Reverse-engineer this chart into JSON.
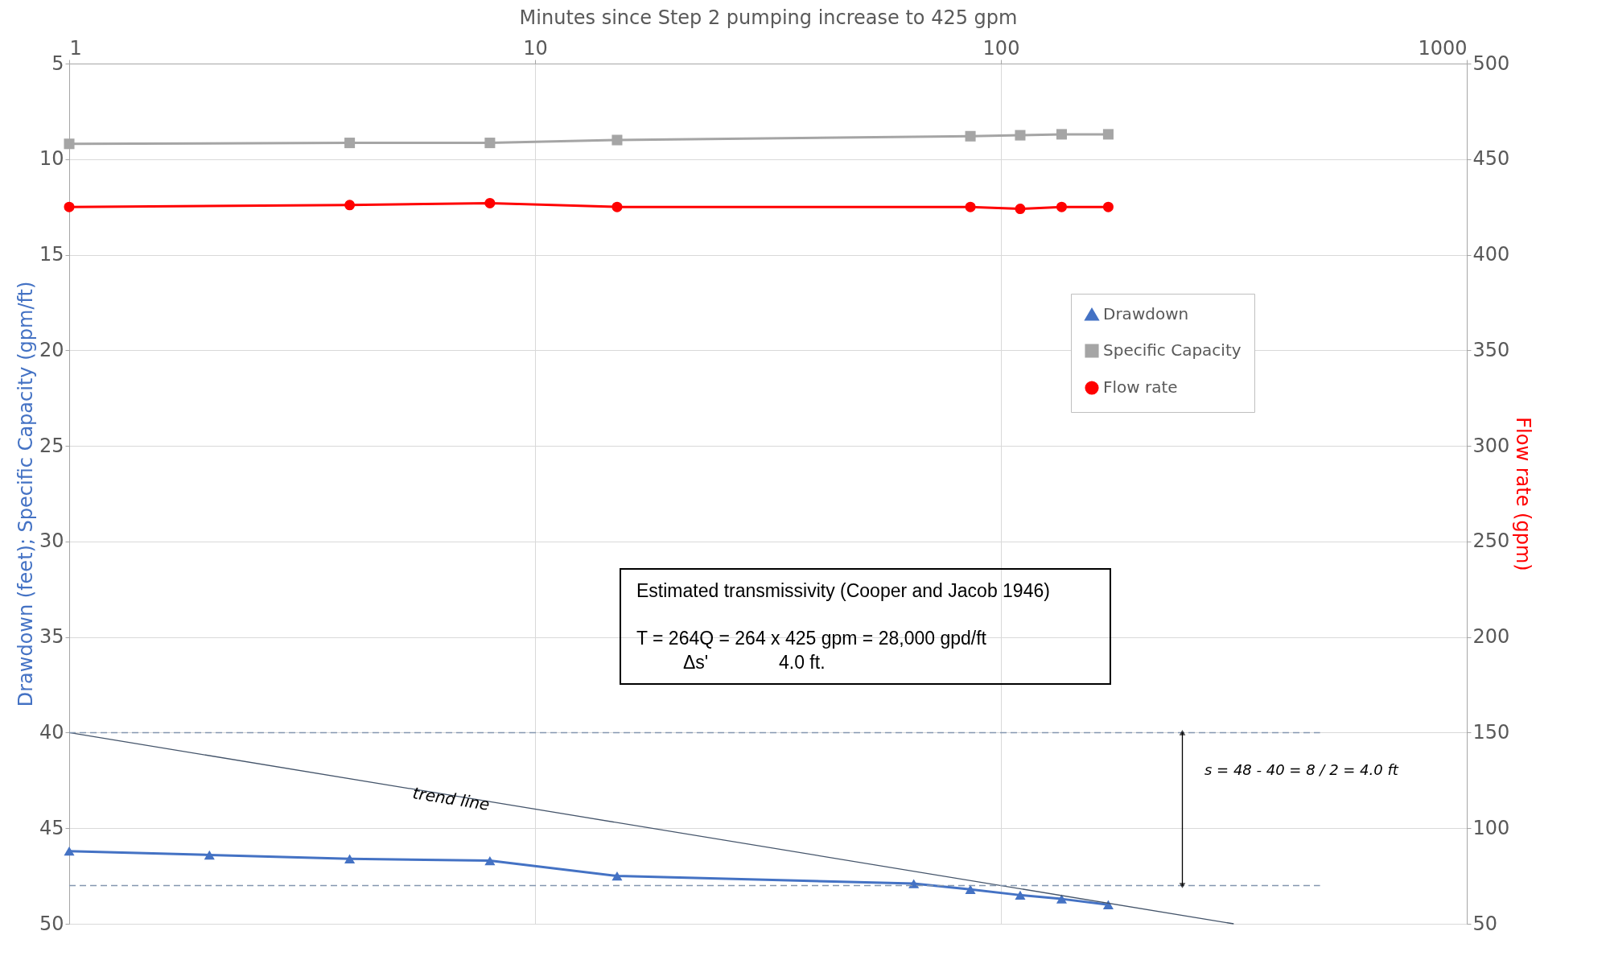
{
  "chart_data": {
    "type": "line",
    "xlabel": "Minutes since Step 2 pumping increase to 425 gpm",
    "ylabel": "Drawdown (feet); Specific Capacity (gpm/ft)",
    "y2label": "Flow rate (gpm)",
    "log": "x",
    "xlim": [
      1,
      1000
    ],
    "xticks": [
      1,
      10,
      100,
      1000
    ],
    "ylim": [
      50,
      5
    ],
    "yticks": [
      5,
      10,
      15,
      20,
      25,
      30,
      35,
      40,
      45,
      50
    ],
    "y2lim": [
      50,
      500
    ],
    "y2ticks": [
      50,
      100,
      150,
      200,
      250,
      300,
      350,
      400,
      450,
      500
    ],
    "grid": true,
    "legend": "right",
    "line_style": "solid",
    "series": [
      {
        "name": "Drawdown",
        "color": "#4472c4",
        "marker": "triangle",
        "x": [
          1,
          2,
          4,
          8,
          15,
          65,
          86,
          110,
          135,
          170
        ],
        "values": [
          46.2,
          46.4,
          46.6,
          46.7,
          47.5,
          47.9,
          48.2,
          48.5,
          48.7,
          49.0
        ]
      },
      {
        "name": "Specific Capacity",
        "color": "#a5a5a5",
        "marker": "square",
        "x": [
          1,
          4,
          8,
          15,
          86,
          110,
          135,
          170
        ],
        "values": [
          9.2,
          9.15,
          9.15,
          9.0,
          8.8,
          8.75,
          8.7,
          8.7
        ]
      },
      {
        "name": "Flow rate",
        "color": "#ff0000",
        "marker": "circle",
        "axis": "y2",
        "x": [
          1,
          4,
          8,
          15,
          86,
          110,
          135,
          170
        ],
        "values": [
          425,
          426,
          427,
          425,
          425,
          424,
          425,
          425
        ]
      },
      {
        "type": "line",
        "color": "#44546a",
        "marker": "none",
        "x": [
          1,
          316
        ],
        "values": [
          40,
          50
        ]
      }
    ],
    "ref_lines": [
      {
        "axis": "y",
        "value": 40,
        "color": "#8497b0",
        "line_style": "dashed"
      },
      {
        "axis": "y",
        "value": 48,
        "color": "#8497b0",
        "line_style": "dashed"
      }
    ],
    "annotations": [
      {
        "text": "trend line",
        "x": 6.6,
        "y": 43.5
      },
      "s = 48 - 40 = 8 / 2 = 4.0 ft",
      "Estimated transmissivity (Cooper and Jacob 1946)",
      "T = 264Q = 264 x 425 gpm = 28,000 gpd/ft",
      "Δs'",
      "4.0 ft."
    ]
  }
}
